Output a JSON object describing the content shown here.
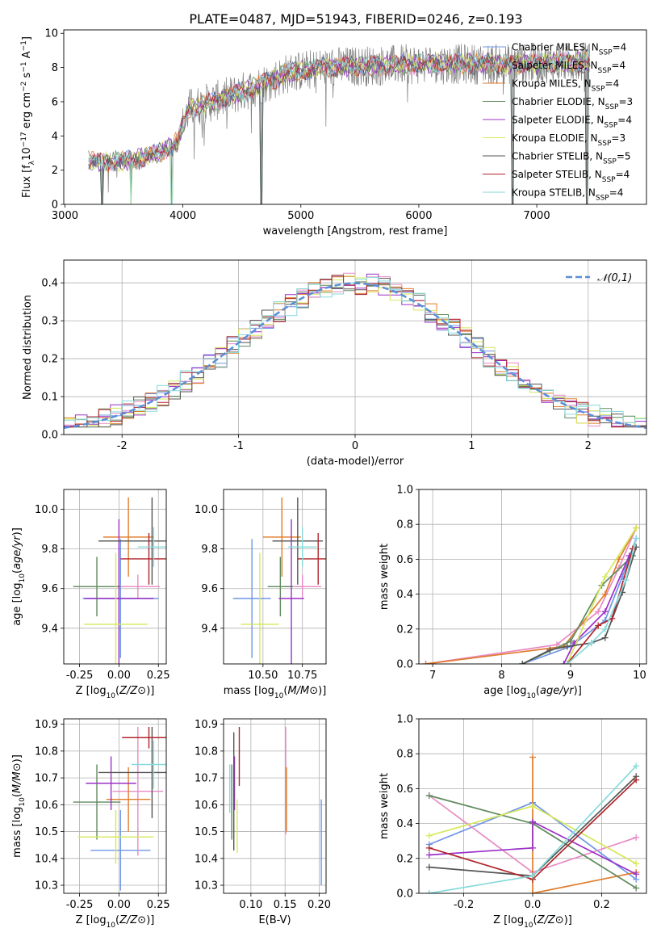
{
  "figure_title": "PLATE=0487, MJD=51943, FIBERID=0246, z=0.193",
  "colors": {
    "Chabrier MILES": "#6f95e6",
    "Salpeter MILES": "#e88ac4",
    "Kroupa MILES": "#e07b2a",
    "Chabrier ELODIE": "#5f8a5e",
    "Salpeter ELODIE": "#9b30c8",
    "Kroupa ELODIE": "#d6e85a",
    "Chabrier STELIB": "#555555",
    "Salpeter STELIB": "#b0242a",
    "Kroupa STELIB": "#86dada",
    "data": "#808080",
    "normal": "#5b8fd6",
    "grid": "#b0b0b0"
  },
  "chart_data": [
    {
      "id": "spectrum",
      "type": "line",
      "xlabel": "wavelength [Angstrom, rest frame]",
      "ylabel": "Flux [f_λ10^-17 erg cm^-2 s^-1 A^-1]",
      "xlim": [
        2990,
        7930
      ],
      "ylim": [
        0,
        10.2
      ],
      "xticks": [
        3000,
        4000,
        5000,
        6000,
        7000
      ],
      "yticks": [
        0,
        2,
        4,
        6,
        8,
        10
      ],
      "grid": false,
      "legend_position": "right",
      "legend": [
        {
          "label": "Chabrier MILES, N",
          "sub": "SSP",
          "post": "=4"
        },
        {
          "label": "Salpeter MILES, N",
          "sub": "SSP",
          "post": "=4"
        },
        {
          "label": "Kroupa MILES, N",
          "sub": "SSP",
          "post": "=4"
        },
        {
          "label": "Chabrier ELODIE, N",
          "sub": "SSP",
          "post": "=3"
        },
        {
          "label": "Salpeter ELODIE, N",
          "sub": "SSP",
          "post": "=4"
        },
        {
          "label": "Kroupa ELODIE, N",
          "sub": "SSP",
          "post": "=3"
        },
        {
          "label": "Chabrier STELIB, N",
          "sub": "SSP",
          "post": "=5"
        },
        {
          "label": "Salpeter STELIB, N",
          "sub": "SSP",
          "post": "=4"
        },
        {
          "label": "Kroupa STELIB, N",
          "sub": "SSP",
          "post": "=4"
        }
      ],
      "continuum": {
        "x": [
          3200,
          3400,
          3600,
          3800,
          3950,
          4050,
          4300,
          4600,
          4900,
          5200,
          5600,
          6000,
          6400,
          6800,
          7200,
          7450
        ],
        "y": [
          2.5,
          2.5,
          2.6,
          3.0,
          3.6,
          5.6,
          6.1,
          6.8,
          7.7,
          8.0,
          8.1,
          8.2,
          8.2,
          8.2,
          8.3,
          8.3
        ]
      },
      "dips": [
        {
          "x": 3315,
          "y": 0
        },
        {
          "x": 3560,
          "y": 0
        },
        {
          "x": 3905,
          "y": 0
        },
        {
          "x": 4665,
          "y": 0
        },
        {
          "x": 6795,
          "y": 0
        },
        {
          "x": 7425,
          "y": 0
        }
      ]
    },
    {
      "id": "residuals",
      "type": "histogram",
      "xlabel": "(data-model)/error",
      "ylabel": "Normed distribution",
      "xlim": [
        -2.5,
        2.5
      ],
      "ylim": [
        0,
        0.46
      ],
      "xticks": [
        -2,
        -1,
        0,
        1,
        2
      ],
      "yticks": [
        0.0,
        0.1,
        0.2,
        0.3,
        0.4
      ],
      "grid": true,
      "bin_width": 0.1,
      "legend": "𝒩(0,1)",
      "legend_position": "top-right",
      "normal": {
        "mean": 0,
        "sigma": 1
      }
    },
    {
      "id": "age_vs_Z",
      "type": "errorbar",
      "xlabel": "Z [log10(Z/Z⊙)]",
      "ylabel": "age  [log10(age/yr)]",
      "xlim": [
        -0.35,
        0.3
      ],
      "ylim": [
        9.22,
        10.1
      ],
      "xticks": [
        -0.25,
        0.0,
        0.25
      ],
      "yticks": [
        9.4,
        9.6,
        9.8,
        10.0
      ],
      "grid": true,
      "points": [
        {
          "model": "Chabrier MILES",
          "x": 0.01,
          "y": 9.55,
          "xerr": 0.24,
          "yerr": 0.3
        },
        {
          "model": "Salpeter MILES",
          "x": 0.12,
          "y": 9.61,
          "xerr": 0.14,
          "yerr": 0.06
        },
        {
          "model": "Kroupa MILES",
          "x": 0.06,
          "y": 9.86,
          "xerr": 0.16,
          "yerr": 0.2
        },
        {
          "model": "Chabrier ELODIE",
          "x": -0.14,
          "y": 9.61,
          "xerr": 0.15,
          "yerr": 0.15
        },
        {
          "model": "Salpeter ELODIE",
          "x": 0.0,
          "y": 9.55,
          "xerr": 0.22,
          "yerr": 0.4
        },
        {
          "model": "Kroupa ELODIE",
          "x": -0.02,
          "y": 9.42,
          "xerr": 0.2,
          "yerr": 0.36
        },
        {
          "model": "Chabrier STELIB",
          "x": 0.21,
          "y": 9.84,
          "xerr": 0.34,
          "yerr": 0.22
        },
        {
          "model": "Salpeter STELIB",
          "x": 0.19,
          "y": 9.75,
          "xerr": 0.18,
          "yerr": 0.13
        },
        {
          "model": "Kroupa STELIB",
          "x": 0.22,
          "y": 9.81,
          "xerr": 0.1,
          "yerr": 0.1
        }
      ]
    },
    {
      "id": "age_vs_mass",
      "type": "errorbar",
      "xlabel": "mass [log10(M/M⊙)]",
      "ylabel": "",
      "xlim": [
        10.25,
        10.9
      ],
      "ylim": [
        9.22,
        10.1
      ],
      "xticks": [
        10.5,
        10.75
      ],
      "xticklabels": [
        "10.50",
        "10.75"
      ],
      "yticks": [
        9.4,
        9.6,
        9.8,
        10.0
      ],
      "grid": true,
      "points": [
        {
          "model": "Chabrier MILES",
          "x": 10.43,
          "y": 9.55,
          "xerr": 0.12,
          "yerr": 0.3
        },
        {
          "model": "Salpeter MILES",
          "x": 10.75,
          "y": 9.61,
          "xerr": 0.12,
          "yerr": 0.06
        },
        {
          "model": "Kroupa MILES",
          "x": 10.62,
          "y": 9.86,
          "xerr": 0.12,
          "yerr": 0.2
        },
        {
          "model": "Chabrier ELODIE",
          "x": 10.61,
          "y": 9.61,
          "xerr": 0.08,
          "yerr": 0.15
        },
        {
          "model": "Salpeter ELODIE",
          "x": 10.68,
          "y": 9.55,
          "xerr": 0.08,
          "yerr": 0.4
        },
        {
          "model": "Kroupa ELODIE",
          "x": 10.48,
          "y": 9.42,
          "xerr": 0.12,
          "yerr": 0.36
        },
        {
          "model": "Chabrier STELIB",
          "x": 10.72,
          "y": 9.84,
          "xerr": 0.16,
          "yerr": 0.22
        },
        {
          "model": "Salpeter STELIB",
          "x": 10.85,
          "y": 9.75,
          "xerr": 0.13,
          "yerr": 0.13
        },
        {
          "model": "Kroupa STELIB",
          "x": 10.75,
          "y": 9.81,
          "xerr": 0.09,
          "yerr": 0.1
        }
      ]
    },
    {
      "id": "cumulative_age",
      "type": "line",
      "xlabel": "age  [log10(age/yr)]",
      "ylabel": "mass weight",
      "xlim": [
        6.8,
        10.1
      ],
      "ylim": [
        0,
        1.0
      ],
      "xticks": [
        7,
        8,
        9,
        10
      ],
      "yticks": [
        0.0,
        0.2,
        0.4,
        0.6,
        0.8,
        1.0
      ],
      "grid": true,
      "series": [
        {
          "model": "Chabrier MILES",
          "x": [
            8.3,
            9.0,
            9.5,
            9.75,
            9.95
          ],
          "y": [
            0.0,
            0.1,
            0.25,
            0.5,
            0.72
          ]
        },
        {
          "model": "Salpeter MILES",
          "x": [
            6.9,
            8.8,
            9.4,
            9.7,
            9.95
          ],
          "y": [
            0.0,
            0.11,
            0.3,
            0.55,
            0.78
          ]
        },
        {
          "model": "Kroupa MILES",
          "x": [
            6.9,
            8.9,
            9.5,
            9.7,
            9.95
          ],
          "y": [
            0.0,
            0.1,
            0.4,
            0.6,
            0.78
          ]
        },
        {
          "model": "Chabrier ELODIE",
          "x": [
            8.3,
            9.0,
            9.45,
            9.9
          ],
          "y": [
            0.0,
            0.13,
            0.45,
            0.62
          ]
        },
        {
          "model": "Salpeter ELODIE",
          "x": [
            8.9,
            9.05,
            9.5,
            9.85
          ],
          "y": [
            0.0,
            0.12,
            0.3,
            0.62
          ]
        },
        {
          "model": "Kroupa ELODIE",
          "x": [
            8.95,
            9.5,
            9.95
          ],
          "y": [
            0.0,
            0.5,
            0.78
          ]
        },
        {
          "model": "Chabrier STELIB",
          "x": [
            8.3,
            8.7,
            8.95,
            9.3,
            9.5,
            9.75,
            9.95
          ],
          "y": [
            0.0,
            0.08,
            0.1,
            0.12,
            0.15,
            0.41,
            0.67
          ]
        },
        {
          "model": "Salpeter STELIB",
          "x": [
            8.95,
            9.4,
            9.6,
            9.9
          ],
          "y": [
            0.0,
            0.22,
            0.26,
            0.66
          ]
        },
        {
          "model": "Kroupa STELIB",
          "x": [
            8.95,
            9.3,
            9.5,
            9.8,
            9.95
          ],
          "y": [
            0.0,
            0.12,
            0.2,
            0.48,
            0.72
          ]
        }
      ]
    },
    {
      "id": "mass_vs_Z",
      "type": "errorbar",
      "xlabel": "Z [log10(Z/Z⊙)]",
      "ylabel": "mass [log10(M/M⊙)]",
      "xlim": [
        -0.35,
        0.3
      ],
      "ylim": [
        10.27,
        10.92
      ],
      "xticks": [
        -0.25,
        0.0,
        0.25
      ],
      "yticks": [
        10.3,
        10.4,
        10.5,
        10.6,
        10.7,
        10.8,
        10.9
      ],
      "grid": true,
      "points": [
        {
          "model": "Chabrier MILES",
          "x": 0.01,
          "y": 10.43,
          "xerr": 0.19,
          "yerr": 0.15
        },
        {
          "model": "Salpeter MILES",
          "x": 0.12,
          "y": 10.65,
          "xerr": 0.16,
          "yerr": 0.24
        },
        {
          "model": "Kroupa MILES",
          "x": 0.06,
          "y": 10.62,
          "xerr": 0.14,
          "yerr": 0.12
        },
        {
          "model": "Chabrier ELODIE",
          "x": -0.14,
          "y": 10.61,
          "xerr": 0.15,
          "yerr": 0.14
        },
        {
          "model": "Salpeter ELODIE",
          "x": -0.05,
          "y": 10.68,
          "xerr": 0.16,
          "yerr": 0.1
        },
        {
          "model": "Kroupa ELODIE",
          "x": -0.02,
          "y": 10.48,
          "xerr": 0.24,
          "yerr": 0.1
        },
        {
          "model": "Chabrier STELIB",
          "x": 0.21,
          "y": 10.72,
          "xerr": 0.34,
          "yerr": 0.17
        },
        {
          "model": "Salpeter STELIB",
          "x": 0.19,
          "y": 10.85,
          "xerr": 0.17,
          "yerr": 0.04
        },
        {
          "model": "Kroupa STELIB",
          "x": 0.22,
          "y": 10.75,
          "xerr": 0.14,
          "yerr": 0.09
        }
      ]
    },
    {
      "id": "mass_vs_ebv",
      "type": "errorbar",
      "xlabel": "E(B-V)",
      "ylabel": "",
      "xlim": [
        0.06,
        0.21
      ],
      "ylim": [
        10.27,
        10.92
      ],
      "xticks": [
        0.1,
        0.15,
        0.2
      ],
      "xticklabels": [
        "0.10",
        "0.15",
        "0.20"
      ],
      "yticks": [
        10.3,
        10.4,
        10.5,
        10.6,
        10.7,
        10.8,
        10.9
      ],
      "grid": true,
      "points": [
        {
          "model": "Chabrier MILES",
          "x": 0.203,
          "y": 10.46,
          "xerr": 0,
          "yerr": 0.16
        },
        {
          "model": "Salpeter MILES",
          "x": 0.151,
          "y": 10.69,
          "xerr": 0,
          "yerr": 0.2
        },
        {
          "model": "Kroupa MILES",
          "x": 0.152,
          "y": 10.62,
          "xerr": 0,
          "yerr": 0.12
        },
        {
          "model": "Chabrier ELODIE",
          "x": 0.072,
          "y": 10.61,
          "xerr": 0,
          "yerr": 0.14
        },
        {
          "model": "Salpeter ELODIE",
          "x": 0.076,
          "y": 10.68,
          "xerr": 0,
          "yerr": 0.1
        },
        {
          "model": "Kroupa ELODIE",
          "x": 0.08,
          "y": 10.52,
          "xerr": 0,
          "yerr": 0.1
        },
        {
          "model": "Chabrier STELIB",
          "x": 0.075,
          "y": 10.65,
          "xerr": 0,
          "yerr": 0.22
        },
        {
          "model": "Salpeter STELIB",
          "x": 0.083,
          "y": 10.78,
          "xerr": 0,
          "yerr": 0.11
        },
        {
          "model": "Kroupa STELIB",
          "x": 0.069,
          "y": 10.66,
          "xerr": 0,
          "yerr": 0.09
        }
      ]
    },
    {
      "id": "mass_weight_vs_Z",
      "type": "line",
      "xlabel": "Z [log10(Z/Z⊙)]",
      "ylabel": "mass weight",
      "xlim": [
        -0.33,
        0.33
      ],
      "ylim": [
        0,
        1.0
      ],
      "xticks": [
        -0.2,
        0.0,
        0.2
      ],
      "yticks": [
        0.0,
        0.2,
        0.4,
        0.6,
        0.8,
        1.0
      ],
      "grid": true,
      "series": [
        {
          "model": "Chabrier MILES",
          "x": [
            -0.3,
            0.0,
            0.3
          ],
          "y": [
            0.28,
            0.52,
            0.08
          ]
        },
        {
          "model": "Salpeter MILES",
          "x": [
            -0.3,
            0.0,
            0.3
          ],
          "y": [
            0.56,
            0.12,
            0.32
          ]
        },
        {
          "model": "Kroupa MILES",
          "x": [
            0.0,
            0.0,
            0.3
          ],
          "y": [
            0.78,
            0.0,
            0.12
          ]
        },
        {
          "model": "Chabrier ELODIE",
          "x": [
            -0.3,
            0.0,
            0.3
          ],
          "y": [
            0.56,
            0.4,
            0.03
          ]
        },
        {
          "model": "Salpeter ELODIE",
          "x": [
            -0.3,
            0.0,
            0.0,
            0.3
          ],
          "y": [
            0.22,
            0.26,
            0.41,
            0.11
          ]
        },
        {
          "model": "Kroupa ELODIE",
          "x": [
            -0.3,
            0.0,
            0.3
          ],
          "y": [
            0.33,
            0.5,
            0.17
          ]
        },
        {
          "model": "Chabrier STELIB",
          "x": [
            -0.3,
            0.0,
            0.3
          ],
          "y": [
            0.15,
            0.1,
            0.67
          ]
        },
        {
          "model": "Salpeter STELIB",
          "x": [
            -0.3,
            0.0,
            0.3
          ],
          "y": [
            0.26,
            0.08,
            0.65
          ]
        },
        {
          "model": "Kroupa STELIB",
          "x": [
            -0.3,
            -0.3,
            0.0,
            0.3
          ],
          "y": [
            0.0,
            0.0,
            0.1,
            0.73
          ]
        }
      ]
    }
  ]
}
